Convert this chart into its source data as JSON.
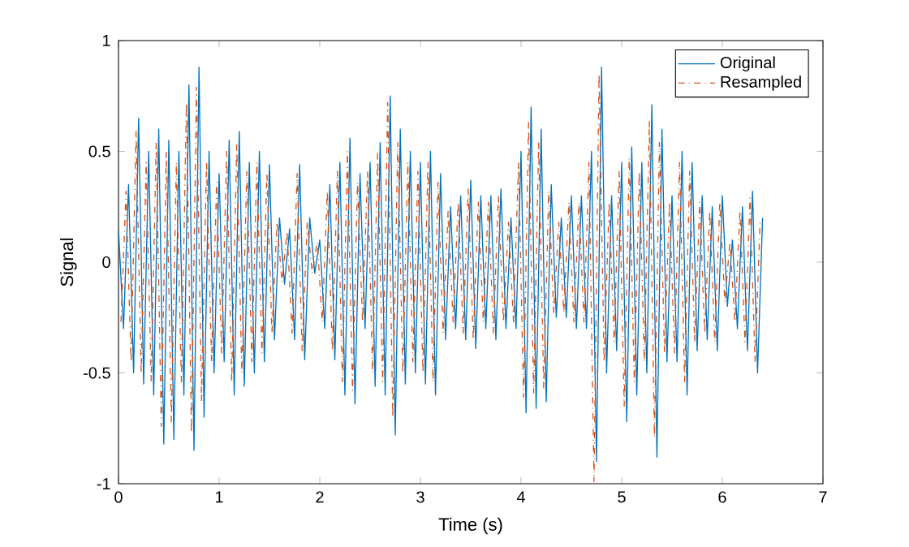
{
  "chart_data": {
    "type": "line",
    "xlabel": "Time (s)",
    "ylabel": "Signal",
    "xlim": [
      0,
      7
    ],
    "ylim": [
      -1,
      1
    ],
    "xticks": [
      0,
      1,
      2,
      3,
      4,
      5,
      6,
      7
    ],
    "yticks": [
      -1,
      -0.5,
      0,
      0.5,
      1
    ],
    "legend": "top right",
    "series": [
      {
        "name": "Original",
        "color": "#0072bd",
        "line_style": "solid",
        "x": [
          0,
          0.05,
          0.1,
          0.15,
          0.2,
          0.25,
          0.3,
          0.35,
          0.4,
          0.45,
          0.5,
          0.55,
          0.6,
          0.65,
          0.7,
          0.75,
          0.8,
          0.85,
          0.9,
          0.95,
          1,
          1.05,
          1.1,
          1.15,
          1.2,
          1.25,
          1.3,
          1.35,
          1.4,
          1.45,
          1.5,
          1.55,
          1.6,
          1.65,
          1.7,
          1.75,
          1.8,
          1.85,
          1.9,
          1.95,
          2,
          2.05,
          2.1,
          2.15,
          2.2,
          2.25,
          2.3,
          2.35,
          2.4,
          2.45,
          2.5,
          2.55,
          2.6,
          2.65,
          2.7,
          2.75,
          2.8,
          2.85,
          2.9,
          2.95,
          3,
          3.05,
          3.1,
          3.15,
          3.2,
          3.25,
          3.3,
          3.35,
          3.4,
          3.45,
          3.5,
          3.55,
          3.6,
          3.65,
          3.7,
          3.75,
          3.8,
          3.85,
          3.9,
          3.95,
          4,
          4.05,
          4.1,
          4.15,
          4.2,
          4.25,
          4.3,
          4.35,
          4.4,
          4.45,
          4.5,
          4.55,
          4.6,
          4.65,
          4.7,
          4.75,
          4.8,
          4.85,
          4.9,
          4.95,
          5,
          5.05,
          5.1,
          5.15,
          5.2,
          5.25,
          5.3,
          5.35,
          5.4,
          5.45,
          5.5,
          5.55,
          5.6,
          5.65,
          5.7,
          5.75,
          5.8,
          5.85,
          5.9,
          5.95,
          6,
          6.05,
          6.1,
          6.15,
          6.2,
          6.25,
          6.3,
          6.35,
          6.4
        ],
        "values": [
          0.15,
          -0.3,
          0.35,
          -0.5,
          0.65,
          -0.55,
          0.5,
          -0.6,
          0.6,
          -0.82,
          0.55,
          -0.8,
          0.5,
          -0.6,
          0.8,
          -0.85,
          0.88,
          -0.7,
          0.5,
          -0.5,
          0.4,
          -0.45,
          0.55,
          -0.6,
          0.59,
          -0.56,
          0.45,
          -0.5,
          0.5,
          -0.45,
          0.44,
          -0.35,
          0.2,
          -0.1,
          0.15,
          -0.35,
          0.44,
          -0.44,
          0.2,
          -0.05,
          0.1,
          -0.3,
          0.35,
          -0.44,
          0.45,
          -0.6,
          0.56,
          -0.64,
          0.4,
          -0.3,
          0.45,
          -0.56,
          0.54,
          -0.6,
          0.75,
          -0.78,
          0.6,
          -0.55,
          0.5,
          -0.5,
          0.45,
          -0.55,
          0.5,
          -0.6,
          0.4,
          -0.35,
          0.25,
          -0.3,
          0.3,
          -0.35,
          0.37,
          -0.39,
          0.3,
          -0.3,
          0.3,
          -0.35,
          0.33,
          -0.3,
          0.2,
          -0.3,
          0.5,
          -0.68,
          0.7,
          -0.66,
          0.6,
          -0.63,
          0.35,
          -0.25,
          0.2,
          -0.25,
          0.3,
          -0.3,
          0.3,
          -0.3,
          0.5,
          -0.9,
          0.88,
          -0.5,
          0.3,
          -0.4,
          0.45,
          -0.72,
          0.52,
          -0.6,
          0.45,
          -0.5,
          0.71,
          -0.88,
          0.6,
          -0.45,
          0.3,
          -0.45,
          0.5,
          -0.6,
          0.45,
          -0.4,
          0.3,
          -0.35,
          0.25,
          -0.4,
          0.3,
          -0.2,
          0.1,
          -0.3,
          0.25,
          -0.4,
          0.32,
          -0.5,
          0.2
        ]
      },
      {
        "name": "Resampled",
        "color": "#d95319",
        "line_style": "dotted",
        "x": [
          0.025,
          0.075,
          0.125,
          0.175,
          0.225,
          0.275,
          0.325,
          0.375,
          0.425,
          0.475,
          0.525,
          0.575,
          0.625,
          0.675,
          0.725,
          0.775,
          0.825,
          0.875,
          0.925,
          0.975,
          1.025,
          1.075,
          1.125,
          1.175,
          1.225,
          1.275,
          1.325,
          1.375,
          1.425,
          1.475,
          1.525,
          1.575,
          1.625,
          1.675,
          1.725,
          1.775,
          1.825,
          1.875,
          1.925,
          1.975,
          2.025,
          2.075,
          2.125,
          2.175,
          2.225,
          2.275,
          2.325,
          2.375,
          2.425,
          2.475,
          2.525,
          2.575,
          2.625,
          2.675,
          2.725,
          2.775,
          2.825,
          2.875,
          2.925,
          2.975,
          3.025,
          3.075,
          3.125,
          3.175,
          3.225,
          3.275,
          3.325,
          3.375,
          3.425,
          3.475,
          3.525,
          3.575,
          3.625,
          3.675,
          3.725,
          3.775,
          3.825,
          3.875,
          3.925,
          3.975,
          4.025,
          4.075,
          4.125,
          4.175,
          4.225,
          4.275,
          4.325,
          4.375,
          4.425,
          4.475,
          4.525,
          4.575,
          4.625,
          4.675,
          4.725,
          4.775,
          4.825,
          4.875,
          4.925,
          4.975,
          5.025,
          5.075,
          5.125,
          5.175,
          5.225,
          5.275,
          5.325,
          5.375,
          5.425,
          5.475,
          5.525,
          5.575,
          5.625,
          5.675,
          5.725,
          5.775,
          5.825,
          5.875,
          5.925,
          5.975,
          6.025,
          6.075,
          6.125,
          6.175,
          6.225,
          6.275,
          6.325,
          6.375
        ],
        "values": [
          -0.27,
          0.32,
          -0.45,
          0.59,
          -0.5,
          0.45,
          -0.54,
          0.54,
          -0.74,
          0.5,
          -0.72,
          0.45,
          -0.54,
          0.72,
          -0.77,
          0.79,
          -0.63,
          0.45,
          -0.45,
          0.36,
          -0.41,
          0.5,
          -0.54,
          0.53,
          -0.5,
          0.41,
          -0.45,
          0.45,
          -0.41,
          0.4,
          -0.32,
          0.18,
          -0.09,
          0.14,
          -0.32,
          0.4,
          -0.4,
          0.18,
          -0.05,
          0.09,
          -0.27,
          0.32,
          -0.4,
          0.41,
          -0.54,
          0.5,
          -0.58,
          0.36,
          -0.27,
          0.41,
          -0.5,
          0.49,
          -0.54,
          0.72,
          -0.7,
          0.54,
          -0.5,
          0.45,
          -0.45,
          0.41,
          -0.5,
          0.45,
          -0.54,
          0.36,
          -0.32,
          0.23,
          -0.27,
          0.27,
          -0.32,
          0.33,
          -0.35,
          0.27,
          -0.27,
          0.27,
          -0.32,
          0.3,
          -0.27,
          0.18,
          -0.27,
          0.45,
          -0.61,
          0.63,
          -0.59,
          0.54,
          -0.57,
          0.32,
          -0.23,
          0.18,
          -0.23,
          0.27,
          -0.27,
          0.27,
          -0.27,
          0.45,
          -0.99,
          0.85,
          -0.45,
          0.27,
          -0.36,
          0.41,
          -0.65,
          0.47,
          -0.54,
          0.41,
          -0.45,
          0.64,
          -0.79,
          0.54,
          -0.41,
          0.27,
          -0.41,
          0.45,
          -0.54,
          0.41,
          -0.36,
          0.27,
          -0.32,
          0.23,
          -0.36,
          0.27,
          -0.18,
          0.09,
          -0.27,
          0.23,
          -0.36,
          0.29,
          -0.45,
          0.18
        ]
      }
    ]
  }
}
